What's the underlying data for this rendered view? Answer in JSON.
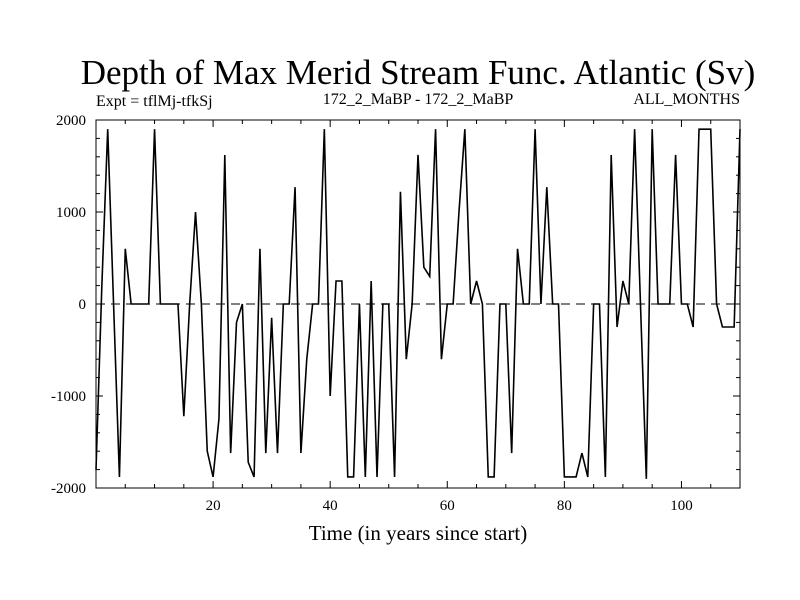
{
  "chart_data": {
    "type": "line",
    "title": "Depth of Max Merid Stream Func. Atlantic (Sv)",
    "subtitle_left": "Expt = tflMj-tfkSj",
    "subtitle_center": "172_2_MaBP - 172_2_MaBP",
    "subtitle_right": "ALL_MONTHS",
    "xlabel": "Time (in years since start)",
    "ylabel": "",
    "xlim": [
      0,
      110
    ],
    "ylim": [
      -2000,
      2000
    ],
    "xticks": [
      20,
      40,
      60,
      80,
      100
    ],
    "yticks": [
      2000,
      1000,
      0,
      -1000,
      -2000
    ],
    "reference_line": {
      "y": 0,
      "style": "dashed"
    },
    "grid": false,
    "series": [
      {
        "x": [
          0,
          1,
          2,
          3,
          4,
          5,
          6,
          7,
          8,
          9,
          10,
          11,
          12,
          13,
          14,
          15,
          16,
          17,
          18,
          19,
          20,
          21,
          22,
          23,
          24,
          25,
          26,
          27,
          28,
          29,
          30,
          31,
          32,
          33,
          34,
          35,
          36,
          37,
          38,
          39,
          40,
          41,
          42,
          43,
          44,
          45,
          46,
          47,
          48,
          49,
          50,
          51,
          52,
          53,
          54,
          55,
          56,
          57,
          58,
          59,
          60,
          61,
          62,
          63,
          64,
          65,
          66,
          67,
          68,
          69,
          70,
          71,
          72,
          73,
          74,
          75,
          76,
          77,
          78,
          79,
          80,
          81,
          82,
          83,
          84,
          85,
          86,
          87,
          88,
          89,
          90,
          91,
          92,
          93,
          94,
          95,
          96,
          97,
          98,
          99,
          100,
          101,
          102,
          103,
          104,
          105,
          106,
          107,
          108,
          109,
          110
        ],
        "values": [
          -1800,
          200,
          1900,
          0,
          -1880,
          600,
          0,
          0,
          0,
          0,
          1900,
          0,
          0,
          0,
          0,
          -1220,
          0,
          1000,
          0,
          -1600,
          -1880,
          -1250,
          1620,
          -1620,
          -200,
          0,
          -1720,
          -1880,
          600,
          -1620,
          -150,
          -1620,
          0,
          0,
          1270,
          -1620,
          -600,
          0,
          0,
          1900,
          -1000,
          250,
          250,
          -1880,
          -1880,
          0,
          -1880,
          250,
          -1880,
          0,
          0,
          -1880,
          1220,
          -600,
          0,
          1620,
          400,
          300,
          1900,
          -600,
          0,
          0,
          1000,
          1900,
          0,
          250,
          0,
          -1880,
          -1880,
          0,
          0,
          -1620,
          600,
          0,
          0,
          1900,
          0,
          1270,
          0,
          0,
          -1880,
          -1880,
          -1880,
          -1620,
          -1880,
          0,
          0,
          -1880,
          1620,
          -250,
          250,
          0,
          1900,
          0,
          -1900,
          1900,
          0,
          0,
          0,
          1620,
          0,
          0,
          -250,
          1900,
          1900,
          1900,
          0,
          -250,
          -250,
          -250,
          1900
        ]
      }
    ]
  }
}
